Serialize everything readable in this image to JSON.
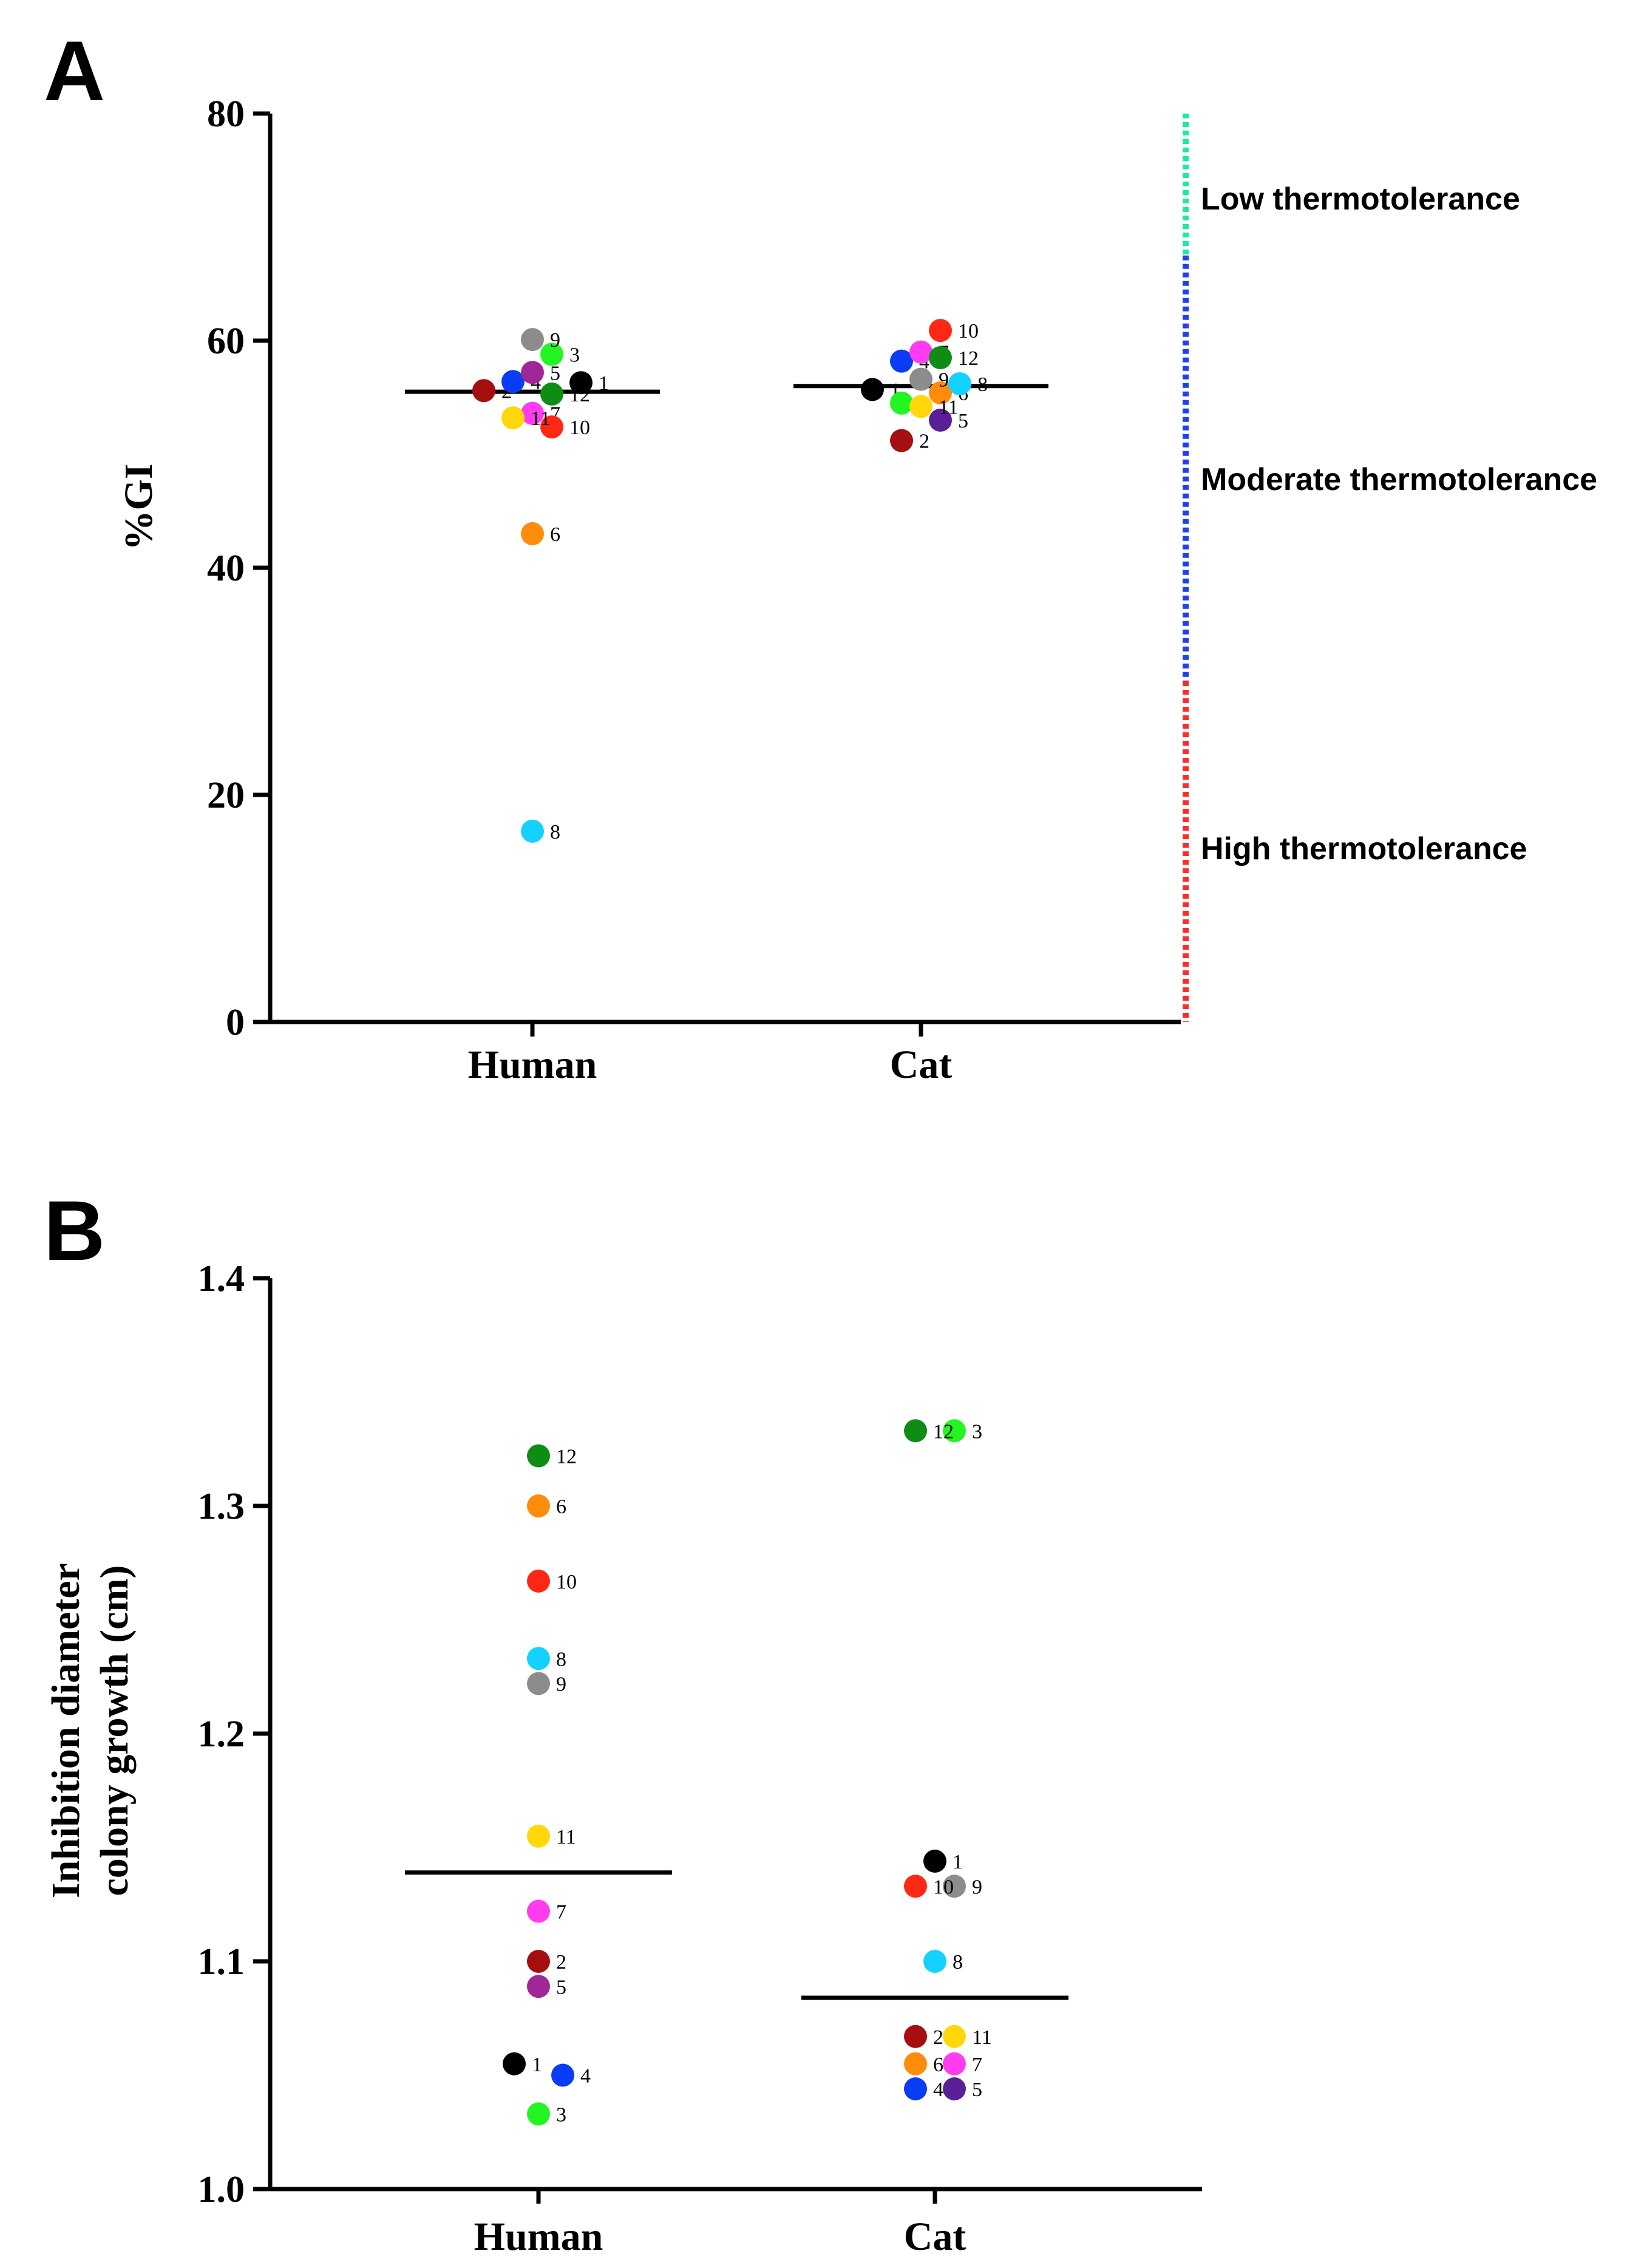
{
  "panel_a_letter": "A",
  "panel_b_letter": "B",
  "thermotolerance": [
    {
      "label": "Low thermotolerance",
      "color": "#1de9a6"
    },
    {
      "label": "Moderate thermotolerance",
      "color": "#1f3ff0"
    },
    {
      "label": "High thermotolerance",
      "color": "#ff2a2a"
    }
  ],
  "strain_colors": {
    "1": "#000000",
    "2": "#a50f0f",
    "3": "#22f522",
    "4": "#0a3cf5",
    "5": "#a02896",
    "6": "#ff8c0a",
    "7": "#ff3cf0",
    "8": "#14d2ff",
    "9": "#8c8c8c",
    "10": "#ff2814",
    "11": "#ffd70a",
    "12": "#0f8c14",
    "5b": "#5a1e96"
  },
  "chart_data": [
    {
      "type": "scatter",
      "title": "A",
      "xlabel": "",
      "ylabel": "%GI",
      "categories": [
        "Human",
        "Cat"
      ],
      "ylim": [
        0,
        80
      ],
      "yticks": [
        "0",
        "20",
        "40",
        "60",
        "80"
      ],
      "series": [
        {
          "name": "Human",
          "median": 55.5,
          "points": [
            {
              "id": "1",
              "y": 56.3
            },
            {
              "id": "2",
              "y": 55.6
            },
            {
              "id": "3",
              "y": 58.8
            },
            {
              "id": "4",
              "y": 56.4
            },
            {
              "id": "5",
              "y": 57.2
            },
            {
              "id": "6",
              "y": 43.0
            },
            {
              "id": "7",
              "y": 53.6
            },
            {
              "id": "8",
              "y": 16.8
            },
            {
              "id": "9",
              "y": 60.1
            },
            {
              "id": "10",
              "y": 52.4
            },
            {
              "id": "11",
              "y": 53.2
            },
            {
              "id": "12",
              "y": 55.3
            }
          ]
        },
        {
          "name": "Cat",
          "median": 56.0,
          "points": [
            {
              "id": "1",
              "y": 55.7
            },
            {
              "id": "2",
              "y": 51.2
            },
            {
              "id": "3",
              "y": 54.5
            },
            {
              "id": "4",
              "y": 58.2
            },
            {
              "id": "5",
              "y": 53.0
            },
            {
              "id": "6",
              "y": 55.4
            },
            {
              "id": "7",
              "y": 59.0
            },
            {
              "id": "8",
              "y": 56.2
            },
            {
              "id": "9",
              "y": 56.6
            },
            {
              "id": "10",
              "y": 60.9
            },
            {
              "id": "11",
              "y": 54.2
            },
            {
              "id": "12",
              "y": 58.5
            }
          ]
        }
      ]
    },
    {
      "type": "scatter",
      "title": "B",
      "xlabel": "",
      "ylabel": [
        "Inhibition diameter",
        "colony growth (cm)"
      ],
      "categories": [
        "Human",
        "Cat"
      ],
      "ylim": [
        1.0,
        1.4
      ],
      "yticks": [
        "1.0",
        "1.1",
        "1.2",
        "1.3",
        "1.4"
      ],
      "series": [
        {
          "name": "Human",
          "median": 1.139,
          "points": [
            {
              "id": "1",
              "y": 1.055
            },
            {
              "id": "2",
              "y": 1.1
            },
            {
              "id": "3",
              "y": 1.033
            },
            {
              "id": "4",
              "y": 1.05
            },
            {
              "id": "5",
              "y": 1.089
            },
            {
              "id": "6",
              "y": 1.3
            },
            {
              "id": "7",
              "y": 1.122
            },
            {
              "id": "8",
              "y": 1.233
            },
            {
              "id": "9",
              "y": 1.222
            },
            {
              "id": "10",
              "y": 1.267
            },
            {
              "id": "11",
              "y": 1.155
            },
            {
              "id": "12",
              "y": 1.322
            }
          ]
        },
        {
          "name": "Cat",
          "median": 1.084,
          "points": [
            {
              "id": "1",
              "y": 1.144
            },
            {
              "id": "2",
              "y": 1.067
            },
            {
              "id": "3",
              "y": 1.333
            },
            {
              "id": "4",
              "y": 1.044
            },
            {
              "id": "5",
              "y": 1.044
            },
            {
              "id": "6",
              "y": 1.055
            },
            {
              "id": "7",
              "y": 1.055
            },
            {
              "id": "8",
              "y": 1.1
            },
            {
              "id": "9",
              "y": 1.133
            },
            {
              "id": "10",
              "y": 1.133
            },
            {
              "id": "11",
              "y": 1.067
            },
            {
              "id": "12",
              "y": 1.333
            }
          ]
        }
      ]
    }
  ]
}
